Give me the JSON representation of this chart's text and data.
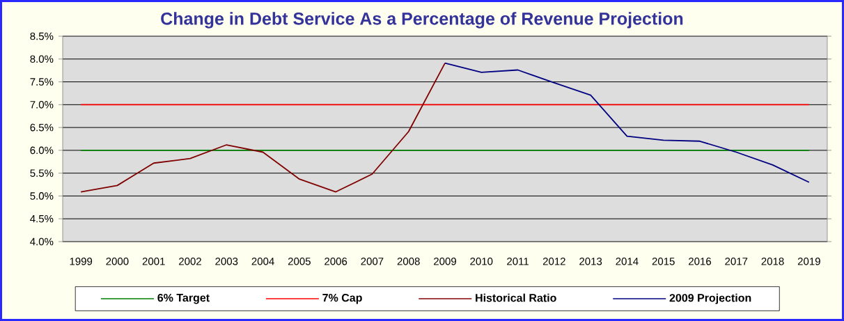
{
  "chart_data": {
    "type": "line",
    "title": "Change in Debt Service As a Percentage of Revenue Projection",
    "categories": [
      "1999",
      "2000",
      "2001",
      "2002",
      "2003",
      "2004",
      "2005",
      "2006",
      "2007",
      "2008",
      "2009",
      "2010",
      "2011",
      "2012",
      "2013",
      "2014",
      "2015",
      "2016",
      "2017",
      "2018",
      "2019"
    ],
    "series": [
      {
        "name": "6% Target",
        "color": "#008000",
        "values": [
          6,
          6,
          6,
          6,
          6,
          6,
          6,
          6,
          6,
          6,
          6,
          6,
          6,
          6,
          6,
          6,
          6,
          6,
          6,
          6,
          6
        ]
      },
      {
        "name": "7% Cap",
        "color": "#ff0000",
        "values": [
          7,
          7,
          7,
          7,
          7,
          7,
          7,
          7,
          7,
          7,
          7,
          7,
          7,
          7,
          7,
          7,
          7,
          7,
          7,
          7,
          7
        ]
      },
      {
        "name": "Historical Ratio",
        "color": "#800000",
        "values": [
          5.09,
          5.23,
          5.72,
          5.82,
          6.12,
          5.96,
          5.37,
          5.09,
          5.48,
          6.41,
          7.91,
          null,
          null,
          null,
          null,
          null,
          null,
          null,
          null,
          null,
          null
        ]
      },
      {
        "name": "2009 Projection",
        "color": "#000080",
        "values": [
          null,
          null,
          null,
          null,
          null,
          null,
          null,
          null,
          null,
          null,
          7.91,
          7.71,
          7.76,
          7.48,
          7.21,
          6.31,
          6.22,
          6.2,
          5.96,
          5.68,
          5.3
        ]
      }
    ],
    "ylim": [
      4.0,
      8.5
    ],
    "yticks": [
      {
        "value": 4.0,
        "label": "4.0%"
      },
      {
        "value": 4.5,
        "label": "4.5%"
      },
      {
        "value": 5.0,
        "label": "5.0%"
      },
      {
        "value": 5.5,
        "label": "5.5%"
      },
      {
        "value": 6.0,
        "label": "6.0%"
      },
      {
        "value": 6.5,
        "label": "6.5%"
      },
      {
        "value": 7.0,
        "label": "7.0%"
      },
      {
        "value": 7.5,
        "label": "7.5%"
      },
      {
        "value": 8.0,
        "label": "8.0%"
      },
      {
        "value": 8.5,
        "label": "8.5%"
      }
    ],
    "grid": "y",
    "legend": "bottom",
    "marker": "none",
    "line_style": "solid"
  }
}
